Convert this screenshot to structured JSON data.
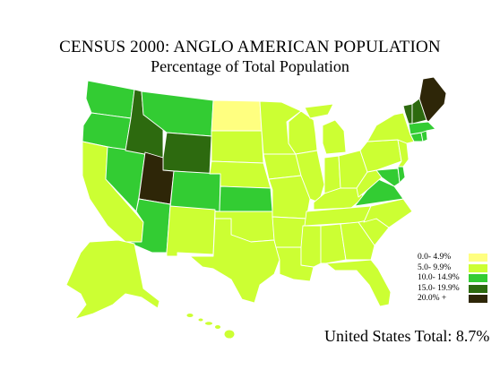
{
  "title": "CENSUS 2000: ANGLO AMERICAN POPULATION",
  "subtitle": "Percentage of Total Population",
  "legend": [
    {
      "label": "0.0- 4.9%",
      "color": "#ffff80"
    },
    {
      "label": "5.0- 9.9%",
      "color": "#ccff33"
    },
    {
      "label": "10.0- 14.9%",
      "color": "#33cc33"
    },
    {
      "label": "15.0- 19.9%",
      "color": "#2d6a0f"
    },
    {
      "label": "20.0% +",
      "color": "#2e2608"
    }
  ],
  "total_text": "United States Total: 8.7%",
  "class_colors": [
    "#ffff80",
    "#ccff33",
    "#33cc33",
    "#2d6a0f",
    "#2e2608"
  ],
  "states": {
    "WA": 2,
    "OR": 2,
    "CA": 1,
    "NV": 2,
    "ID": 3,
    "MT": 2,
    "WY": 3,
    "UT": 4,
    "AZ": 2,
    "CO": 2,
    "NM": 1,
    "ND": 0,
    "SD": 1,
    "NE": 1,
    "KS": 2,
    "OK": 1,
    "TX": 1,
    "MN": 1,
    "IA": 1,
    "MO": 1,
    "AR": 1,
    "LA": 1,
    "WI": 1,
    "IL": 1,
    "MI": 1,
    "IN": 1,
    "OH": 1,
    "KY": 1,
    "TN": 1,
    "MS": 1,
    "AL": 1,
    "GA": 1,
    "FL": 1,
    "SC": 1,
    "NC": 1,
    "VA": 2,
    "WV": 1,
    "MD": 2,
    "DE": 2,
    "PA": 1,
    "NJ": 1,
    "NY": 1,
    "CT": 2,
    "RI": 2,
    "MA": 2,
    "VT": 3,
    "NH": 3,
    "ME": 4,
    "AK": 1,
    "HI": 1
  }
}
